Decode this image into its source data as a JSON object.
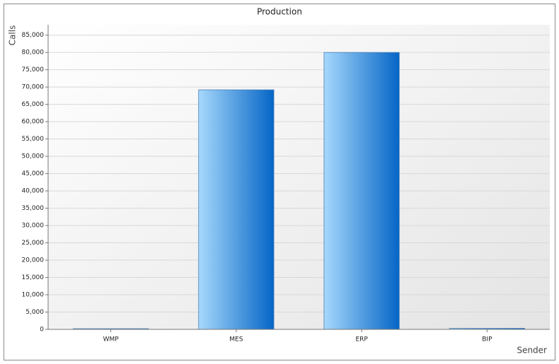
{
  "chart_data": {
    "type": "bar",
    "title": "Production",
    "y_label": "Calls",
    "x_label": "Sender",
    "categories": [
      "WMP",
      "MES",
      "ERP",
      "BIP"
    ],
    "values": [
      200,
      69200,
      80000,
      300
    ],
    "color": "#3f8fdc",
    "ylim": [
      0,
      88000
    ],
    "yticks": [
      0,
      {
        "value": 5000,
        "label": "5,000"
      },
      {
        "value": 10000,
        "label": "10,000"
      },
      {
        "value": 15000,
        "label": "15,000"
      },
      {
        "value": 20000,
        "label": "20,000"
      },
      {
        "value": 25000,
        "label": "25,000"
      },
      {
        "value": 30000,
        "label": "30,000"
      },
      {
        "value": 35000,
        "label": "35,000"
      },
      {
        "value": 40000,
        "label": "40,000"
      },
      {
        "value": 45000,
        "label": "45,000"
      },
      {
        "value": 50000,
        "label": "50,000"
      },
      {
        "value": 55000,
        "label": "55,000"
      },
      {
        "value": 60000,
        "label": "60,000"
      },
      {
        "value": 65000,
        "label": "65,000"
      },
      {
        "value": 70000,
        "label": "70,000"
      },
      {
        "value": 75000,
        "label": "75,000"
      },
      {
        "value": 80000,
        "label": "80,000"
      },
      {
        "value": 85000,
        "label": "85,000"
      }
    ],
    "grid": true
  }
}
